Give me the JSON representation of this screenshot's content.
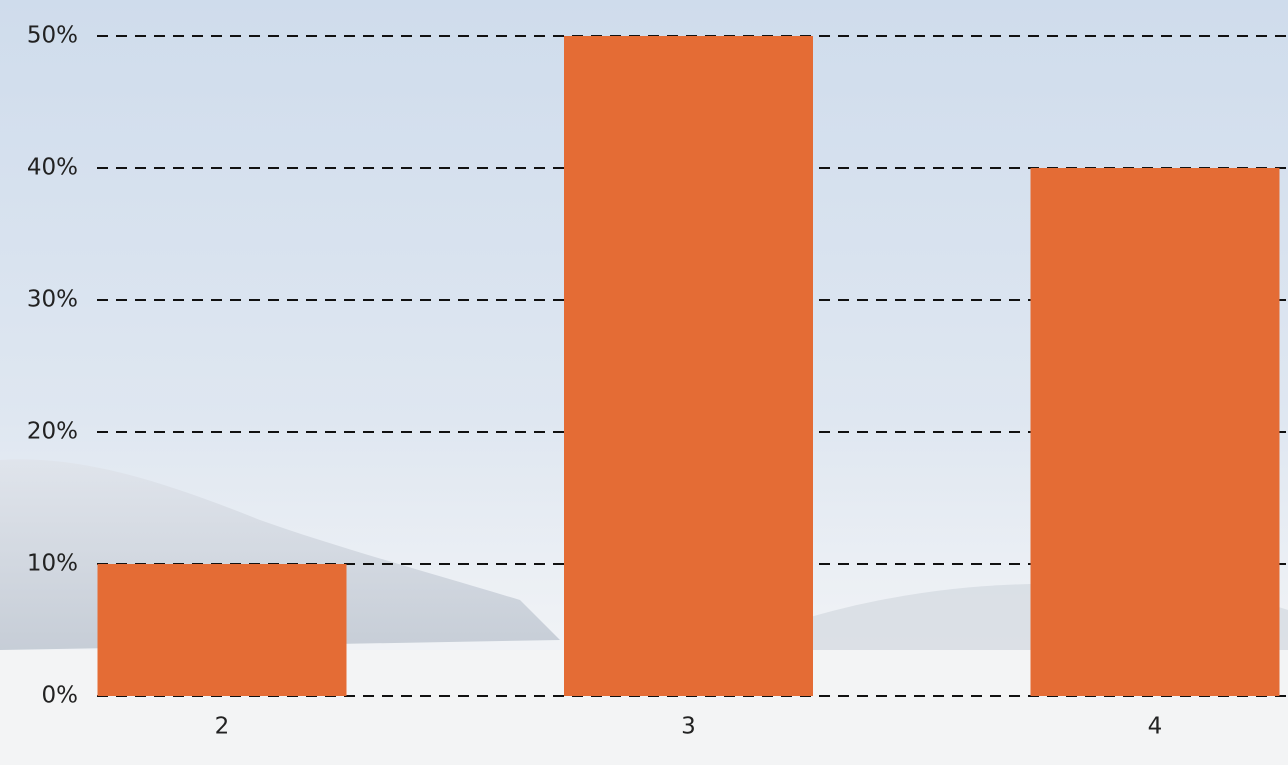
{
  "chart_data": {
    "type": "bar",
    "categories": [
      "2",
      "3",
      "4"
    ],
    "values": [
      10,
      50,
      40
    ],
    "color": "#e46c35",
    "ylim": [
      0,
      50
    ],
    "yticks": [
      {
        "value": 0,
        "label": "0%"
      },
      {
        "value": 10,
        "label": "10%"
      },
      {
        "value": 20,
        "label": "20%"
      },
      {
        "value": 30,
        "label": "30%"
      },
      {
        "value": 40,
        "label": "40%"
      },
      {
        "value": 50,
        "label": "50%"
      }
    ],
    "grid": true
  }
}
